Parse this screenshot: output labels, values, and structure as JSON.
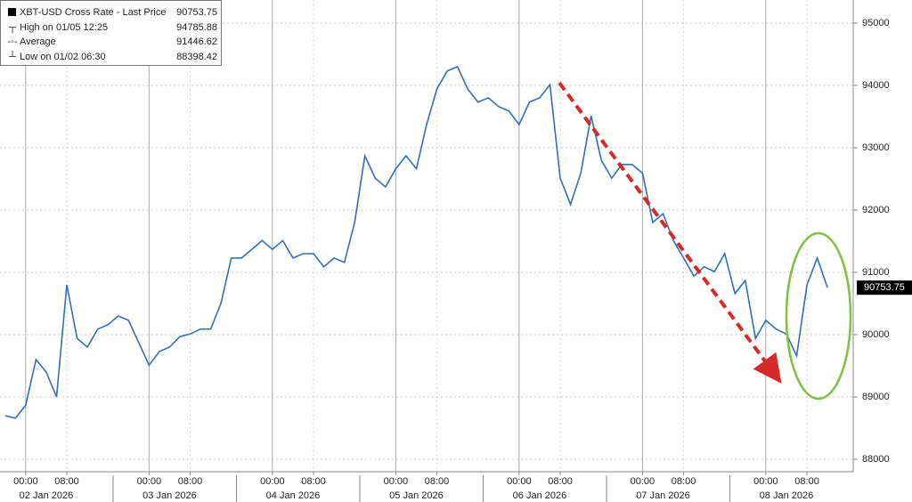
{
  "chart_data": {
    "type": "line",
    "legend_entries": [
      {
        "label": "XBT-USD Cross Rate - Last Price",
        "value": 90753.75
      },
      {
        "label": "High on 01/05 12:25",
        "value": 94785.88
      },
      {
        "label": "Average",
        "value": 91446.62
      },
      {
        "label": "Low on 01/02 06:30",
        "value": 88398.42
      }
    ],
    "x": [
      -4,
      -2,
      0,
      2,
      4,
      6,
      8,
      10,
      12,
      14,
      16,
      18,
      20,
      22,
      24,
      26,
      28,
      30,
      32,
      34,
      36,
      38,
      40,
      42,
      44,
      46,
      48,
      50,
      52,
      54,
      56,
      58,
      60,
      62,
      64,
      66,
      68,
      70,
      72,
      74,
      76,
      78,
      80,
      82,
      84,
      86,
      88,
      90,
      92,
      94,
      96,
      98,
      100,
      102,
      104,
      106,
      108,
      110,
      112,
      114,
      116,
      118,
      120,
      122,
      124,
      126,
      128,
      130,
      132,
      134,
      136,
      138,
      140,
      142,
      144,
      146,
      148,
      150,
      152,
      154,
      156
    ],
    "series": [
      {
        "color": "#2f6fba",
        "values": [
          88700,
          88660,
          88870,
          89600,
          89400,
          89000,
          90800,
          89940,
          89800,
          90090,
          90160,
          90300,
          90230,
          89870,
          89510,
          89730,
          89800,
          89970,
          90010,
          90090,
          90090,
          90510,
          91230,
          91230,
          91370,
          91510,
          91370,
          91510,
          91230,
          91300,
          91300,
          91090,
          91230,
          91160,
          91800,
          92870,
          92510,
          92370,
          92660,
          92870,
          92660,
          93370,
          93940,
          94230,
          94300,
          93940,
          93730,
          93800,
          93660,
          93590,
          93370,
          93730,
          93800,
          94010,
          92510,
          92090,
          92590,
          93510,
          92800,
          92510,
          92730,
          92730,
          92590,
          91800,
          91940,
          91510,
          91230,
          90940,
          91090,
          91010,
          91300,
          90660,
          90870,
          89940,
          90230,
          90090,
          90010,
          89660,
          90800,
          91230,
          90753.75
        ]
      }
    ],
    "xlim": [
      -5,
      161
    ],
    "xticks": [
      {
        "value": 0,
        "label": "00:00"
      },
      {
        "value": 8,
        "label": "08:00"
      },
      {
        "value": 24,
        "label": "00:00"
      },
      {
        "value": 32,
        "label": "08:00"
      },
      {
        "value": 48,
        "label": "00:00"
      },
      {
        "value": 56,
        "label": "08:00"
      },
      {
        "value": 72,
        "label": "00:00"
      },
      {
        "value": 80,
        "label": "08:00"
      },
      {
        "value": 96,
        "label": "00:00"
      },
      {
        "value": 104,
        "label": "08:00"
      },
      {
        "value": 120,
        "label": "00:00"
      },
      {
        "value": 128,
        "label": "08:00"
      },
      {
        "value": 144,
        "label": "00:00"
      },
      {
        "value": 152,
        "label": "08:00"
      }
    ],
    "day_labels": [
      "02 Jan 2026",
      "03 Jan 2026",
      "04 Jan 2026",
      "05 Jan 2026",
      "06 Jan 2026",
      "07 Jan 2026",
      "08 Jan 2026"
    ],
    "ylim": [
      87800,
      95370
    ],
    "yticks": [
      88000,
      89000,
      90000,
      91000,
      92000,
      93000,
      94000,
      95000
    ],
    "grid": true
  }
}
